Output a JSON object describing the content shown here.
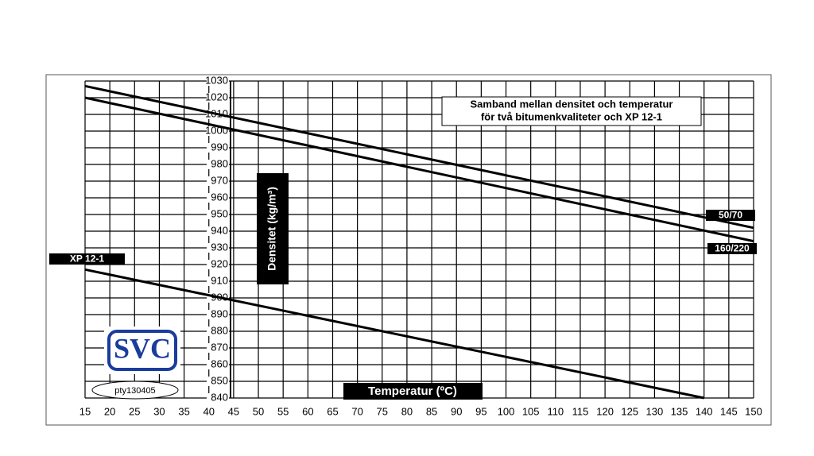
{
  "chart_data": {
    "type": "line",
    "title_lines": [
      "Samband mellan densitet och temperatur",
      "för två bitumenkvaliteter och XP 12-1"
    ],
    "x_label": "Temperatur (ºC)",
    "y_label": "Densitet (kg/m³)",
    "logo": "SVC",
    "code": "pty130405",
    "xlim": [
      15,
      150
    ],
    "xticks": [
      15,
      20,
      25,
      30,
      35,
      40,
      45,
      50,
      55,
      60,
      65,
      70,
      75,
      80,
      85,
      90,
      95,
      100,
      105,
      110,
      115,
      120,
      125,
      130,
      135,
      140,
      145,
      150
    ],
    "ylim": [
      840,
      1030
    ],
    "yticks": [
      840,
      850,
      860,
      870,
      880,
      890,
      900,
      910,
      920,
      930,
      940,
      950,
      960,
      970,
      980,
      990,
      1000,
      1010,
      1020,
      1030
    ],
    "grid": true,
    "series": [
      {
        "name": "50/70",
        "color": "#000000",
        "x": [
          15,
          150
        ],
        "values": [
          1027,
          942
        ]
      },
      {
        "name": "160/220",
        "color": "#000000",
        "x": [
          15,
          150
        ],
        "values": [
          1020,
          934
        ]
      },
      {
        "name": "XP 12-1",
        "color": "#000000",
        "x": [
          15,
          140
        ],
        "values": [
          917,
          840
        ]
      }
    ]
  }
}
